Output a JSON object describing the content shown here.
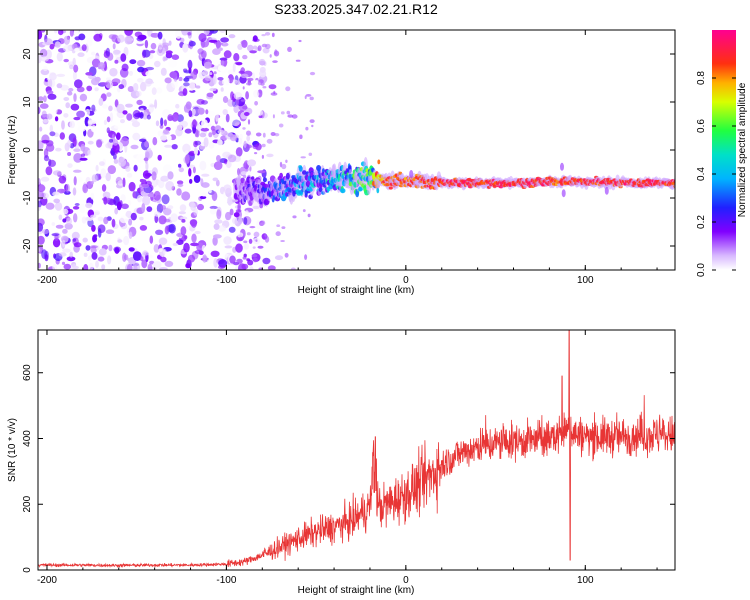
{
  "title": "S233.2025.347.02.21.R12",
  "chart_data": [
    {
      "type": "heatmap",
      "xlabel": "Height of straight line (km)",
      "ylabel": "Frequency (Hz)",
      "xlim": [
        -205,
        150
      ],
      "ylim": [
        -25,
        25
      ],
      "xticks": [
        -200,
        -100,
        0,
        100
      ],
      "yticks": [
        -20,
        -10,
        0,
        10,
        20
      ],
      "colorbar": {
        "label": "Normalized spectral amplitude",
        "ticks": [
          0.0,
          0.2,
          0.4,
          0.6,
          0.8
        ],
        "range": [
          0,
          1
        ],
        "colormap": "rainbow (white-violet-blue-cyan-green-yellow-orange-red-magenta)"
      },
      "signal_track": {
        "description_hidden": true,
        "x": [
          -95,
          -80,
          -65,
          -50,
          -35,
          -20,
          -10,
          0,
          10,
          20,
          40,
          60,
          80,
          85,
          90,
          95,
          100,
          110,
          120,
          130,
          140,
          150
        ],
        "freq": [
          -8,
          -8.5,
          -7.5,
          -6.5,
          -5.5,
          -6,
          -6.5,
          -6.3,
          -6.5,
          -6.8,
          -6.9,
          -6.9,
          -6.6,
          -6.5,
          -6.4,
          -6.6,
          -6.7,
          -6.8,
          -6.8,
          -6.8,
          -6.8,
          -6.9
        ],
        "amplitude": [
          0.15,
          0.22,
          0.3,
          0.38,
          0.45,
          0.55,
          0.95,
          0.9,
          0.95,
          0.95,
          0.97,
          0.97,
          0.97,
          0.9,
          0.97,
          0.97,
          0.97,
          0.95,
          0.97,
          0.97,
          0.97,
          0.97
        ]
      },
      "noise_region_x": [
        -205,
        -90
      ]
    },
    {
      "type": "line",
      "xlabel": "Height of straight line (km)",
      "ylabel": "SNR (10 * v/v)",
      "xlim": [
        -205,
        150
      ],
      "ylim": [
        0,
        730
      ],
      "xticks": [
        -200,
        -100,
        0,
        100
      ],
      "yticks": [
        0,
        200,
        400,
        600
      ],
      "series": [
        {
          "color": "#e83535",
          "x": [
            -205,
            -180,
            -160,
            -140,
            -120,
            -100,
            -90,
            -80,
            -70,
            -60,
            -50,
            -40,
            -30,
            -20,
            -18,
            -15,
            -10,
            0,
            10,
            20,
            30,
            40,
            50,
            60,
            70,
            80,
            85,
            90,
            92,
            95,
            100,
            110,
            120,
            130,
            140,
            150
          ],
          "values": [
            15,
            15,
            14,
            15,
            15,
            18,
            25,
            45,
            70,
            95,
            115,
            130,
            150,
            190,
            330,
            190,
            200,
            230,
            270,
            320,
            355,
            375,
            385,
            390,
            395,
            400,
            410,
            420,
            430,
            410,
            405,
            405,
            405,
            410,
            410,
            410
          ],
          "spikes": [
            {
              "x": -17,
              "value": 405
            },
            {
              "x": 87,
              "value": 590
            },
            {
              "x": 91,
              "value": 730
            },
            {
              "x": 91.5,
              "value": 30
            }
          ]
        }
      ]
    }
  ]
}
